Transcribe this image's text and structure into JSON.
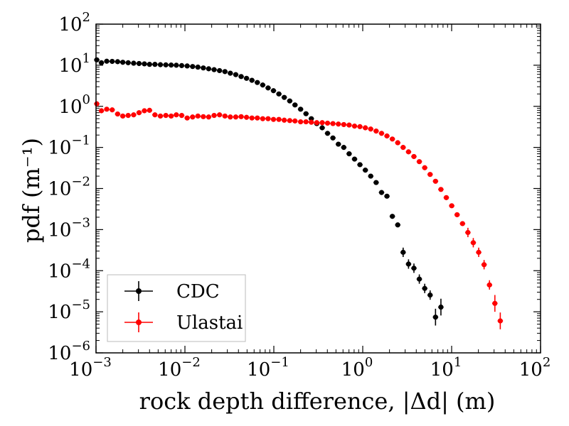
{
  "chart_data": {
    "type": "scatter",
    "title": "",
    "xlabel": "rock depth difference, |Δd| (m)",
    "ylabel": "pdf (m⁻¹)",
    "xscale": "log",
    "yscale": "log",
    "xlim": [
      0.001,
      100
    ],
    "ylim": [
      1e-06,
      100
    ],
    "x_ticks": [
      {
        "value": 0.001,
        "base": "10",
        "exp": "−3"
      },
      {
        "value": 0.01,
        "base": "10",
        "exp": "−2"
      },
      {
        "value": 0.1,
        "base": "10",
        "exp": "−1"
      },
      {
        "value": 1,
        "base": "10",
        "exp": "0"
      },
      {
        "value": 10,
        "base": "10",
        "exp": "1"
      },
      {
        "value": 100,
        "base": "10",
        "exp": "2"
      }
    ],
    "y_ticks": [
      {
        "value": 1e-06,
        "base": "10",
        "exp": "−6"
      },
      {
        "value": 1e-05,
        "base": "10",
        "exp": "−5"
      },
      {
        "value": 0.0001,
        "base": "10",
        "exp": "−4"
      },
      {
        "value": 0.001,
        "base": "10",
        "exp": "−3"
      },
      {
        "value": 0.01,
        "base": "10",
        "exp": "−2"
      },
      {
        "value": 0.1,
        "base": "10",
        "exp": "−1"
      },
      {
        "value": 1,
        "base": "10",
        "exp": "0"
      },
      {
        "value": 10,
        "base": "10",
        "exp": "1"
      },
      {
        "value": 100,
        "base": "10",
        "exp": "2"
      }
    ],
    "legend_position": "lower-left",
    "grid": false,
    "series": [
      {
        "name": "CDC",
        "color": "#000000",
        "points": [
          [
            0.00102,
            13.5
          ],
          [
            0.00115,
            11.5
          ],
          [
            0.00132,
            12.5
          ],
          [
            0.00152,
            12.4
          ],
          [
            0.00175,
            12.2
          ],
          [
            0.002,
            11.8
          ],
          [
            0.0023,
            11.5
          ],
          [
            0.00265,
            11.2
          ],
          [
            0.00305,
            11.0
          ],
          [
            0.0035,
            10.8
          ],
          [
            0.004,
            10.5
          ],
          [
            0.0046,
            10.5
          ],
          [
            0.0053,
            10.3
          ],
          [
            0.0061,
            10.2
          ],
          [
            0.007,
            10.1
          ],
          [
            0.008,
            10.0
          ],
          [
            0.0092,
            9.8
          ],
          [
            0.0106,
            9.6
          ],
          [
            0.0122,
            9.3
          ],
          [
            0.014,
            9.0
          ],
          [
            0.0161,
            8.6
          ],
          [
            0.0185,
            8.2
          ],
          [
            0.0213,
            7.8
          ],
          [
            0.0245,
            7.4
          ],
          [
            0.0282,
            7.0
          ],
          [
            0.0324,
            6.4
          ],
          [
            0.0373,
            5.9
          ],
          [
            0.0429,
            5.3
          ],
          [
            0.0493,
            4.8
          ],
          [
            0.0567,
            4.3
          ],
          [
            0.0652,
            3.8
          ],
          [
            0.075,
            3.3
          ],
          [
            0.0862,
            2.8
          ],
          [
            0.0991,
            2.4
          ],
          [
            0.114,
            2.0
          ],
          [
            0.131,
            1.65
          ],
          [
            0.151,
            1.35
          ],
          [
            0.173,
            1.08
          ],
          [
            0.2,
            0.85
          ],
          [
            0.23,
            0.66
          ],
          [
            0.264,
            0.5
          ],
          [
            0.304,
            0.38
          ],
          [
            0.35,
            0.3
          ],
          [
            0.402,
            0.22
          ],
          [
            0.462,
            0.17
          ],
          [
            0.532,
            0.12
          ],
          [
            0.612,
            0.1
          ],
          [
            0.703,
            0.07
          ],
          [
            0.809,
            0.052
          ],
          [
            0.93,
            0.038
          ],
          [
            1.07,
            0.028
          ],
          [
            1.23,
            0.02
          ],
          [
            1.415,
            0.014
          ],
          [
            1.628,
            0.008
          ],
          [
            1.872,
            0.0065
          ],
          [
            2.153,
            0.0021
          ],
          [
            2.476,
            0.0013
          ],
          [
            2.847,
            0.00028
          ],
          [
            3.274,
            0.000145
          ],
          [
            3.765,
            0.000115
          ],
          [
            4.33,
            6.25e-05
          ],
          [
            4.98,
            3.7e-05
          ],
          [
            5.727,
            2.55e-05
          ],
          [
            6.586,
            7.4e-06
          ],
          [
            7.574,
            1.3e-05
          ]
        ]
      },
      {
        "name": "Ulastai",
        "color": "#ff0000",
        "points": [
          [
            0.00102,
            1.15
          ],
          [
            0.00115,
            0.78
          ],
          [
            0.00132,
            0.85
          ],
          [
            0.00152,
            0.82
          ],
          [
            0.00175,
            0.65
          ],
          [
            0.002,
            0.58
          ],
          [
            0.0023,
            0.6
          ],
          [
            0.00265,
            0.62
          ],
          [
            0.00305,
            0.7
          ],
          [
            0.0035,
            0.78
          ],
          [
            0.004,
            0.8
          ],
          [
            0.0046,
            0.62
          ],
          [
            0.0053,
            0.58
          ],
          [
            0.0061,
            0.6
          ],
          [
            0.007,
            0.58
          ],
          [
            0.008,
            0.62
          ],
          [
            0.0092,
            0.6
          ],
          [
            0.0106,
            0.52
          ],
          [
            0.0122,
            0.55
          ],
          [
            0.014,
            0.58
          ],
          [
            0.0161,
            0.56
          ],
          [
            0.0185,
            0.55
          ],
          [
            0.0213,
            0.6
          ],
          [
            0.0245,
            0.62
          ],
          [
            0.0282,
            0.58
          ],
          [
            0.0324,
            0.55
          ],
          [
            0.0373,
            0.55
          ],
          [
            0.0429,
            0.56
          ],
          [
            0.0493,
            0.54
          ],
          [
            0.0567,
            0.52
          ],
          [
            0.0652,
            0.52
          ],
          [
            0.075,
            0.5
          ],
          [
            0.0862,
            0.5
          ],
          [
            0.0991,
            0.48
          ],
          [
            0.114,
            0.48
          ],
          [
            0.131,
            0.46
          ],
          [
            0.151,
            0.45
          ],
          [
            0.173,
            0.44
          ],
          [
            0.2,
            0.42
          ],
          [
            0.23,
            0.42
          ],
          [
            0.264,
            0.41
          ],
          [
            0.304,
            0.4
          ],
          [
            0.35,
            0.4
          ],
          [
            0.402,
            0.39
          ],
          [
            0.462,
            0.38
          ],
          [
            0.532,
            0.37
          ],
          [
            0.612,
            0.36
          ],
          [
            0.703,
            0.35
          ],
          [
            0.809,
            0.33
          ],
          [
            0.93,
            0.32
          ],
          [
            1.07,
            0.3
          ],
          [
            1.23,
            0.28
          ],
          [
            1.415,
            0.25
          ],
          [
            1.628,
            0.22
          ],
          [
            1.872,
            0.19
          ],
          [
            2.153,
            0.16
          ],
          [
            2.476,
            0.13
          ],
          [
            2.847,
            0.1
          ],
          [
            3.274,
            0.078
          ],
          [
            3.765,
            0.06
          ],
          [
            4.33,
            0.045
          ],
          [
            4.98,
            0.032
          ],
          [
            5.727,
            0.022
          ],
          [
            6.586,
            0.015
          ],
          [
            7.574,
            0.0095
          ],
          [
            8.71,
            0.006
          ],
          [
            10.02,
            0.0038
          ],
          [
            11.52,
            0.0023
          ],
          [
            13.25,
            0.0014
          ],
          [
            15.24,
            0.00085
          ],
          [
            17.52,
            0.00048
          ],
          [
            20.15,
            0.00028
          ],
          [
            23.17,
            0.00014
          ],
          [
            26.65,
            4.5e-05
          ],
          [
            30.64,
            1.6e-05
          ],
          [
            35.24,
            6e-06
          ]
        ]
      }
    ],
    "legend": [
      "CDC",
      "Ulastai"
    ]
  }
}
